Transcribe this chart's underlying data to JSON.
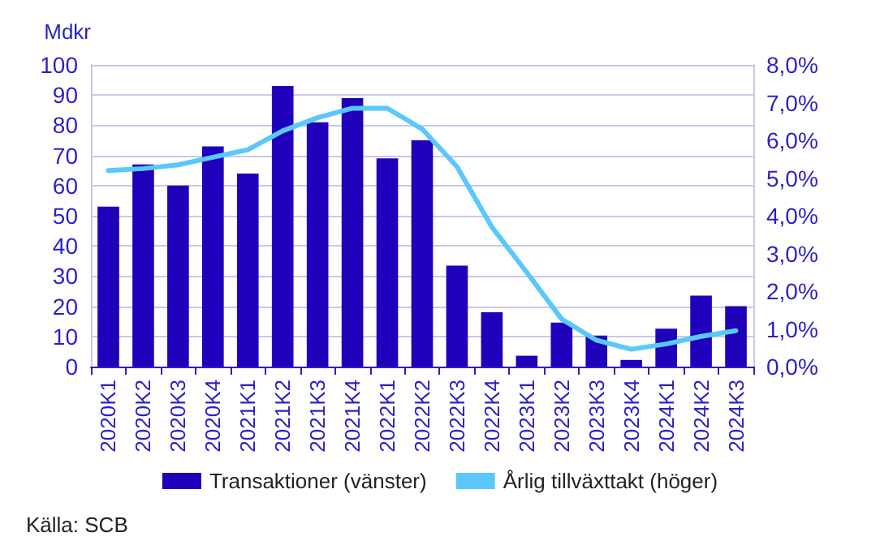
{
  "chart_data": {
    "type": "bar",
    "ylabel": "Mdkr",
    "categories": [
      "2020K1",
      "2020K2",
      "2020K3",
      "2020K4",
      "2021K1",
      "2021K2",
      "2021K3",
      "2021K4",
      "2022K1",
      "2022K2",
      "2022K3",
      "2022K4",
      "2023K1",
      "2023K2",
      "2023K3",
      "2023K4",
      "2024K1",
      "2024K2",
      "2024K3"
    ],
    "series": [
      {
        "name": "Transaktioner (vänster)",
        "color": "#1f00bb",
        "values": [
          53,
          67,
          60,
          73,
          64,
          93,
          81,
          89,
          69,
          75,
          33.5,
          18,
          3.6,
          14.6,
          10.3,
          2.2,
          12.6,
          23.5,
          20
        ]
      },
      {
        "name": "Årlig tillväxttakt (höger)",
        "type": "line",
        "axis": "y2",
        "color": "#5ac8fa",
        "values": [
          5.2,
          5.25,
          5.35,
          5.55,
          5.75,
          6.25,
          6.6,
          6.85,
          6.85,
          6.3,
          5.3,
          3.7,
          2.5,
          1.26,
          0.7,
          0.46,
          0.6,
          0.8,
          0.95
        ]
      }
    ],
    "ylim": [
      0,
      100
    ],
    "yticks": [
      0,
      10,
      20,
      30,
      40,
      50,
      60,
      70,
      80,
      90,
      100
    ],
    "y2lim": [
      0,
      8
    ],
    "y2ticks": [
      {
        "value": 0,
        "label": "0,0%"
      },
      {
        "value": 1,
        "label": "1,0%"
      },
      {
        "value": 2,
        "label": "2,0%"
      },
      {
        "value": 3,
        "label": "3,0%"
      },
      {
        "value": 4,
        "label": "4,0%"
      },
      {
        "value": 5,
        "label": "5,0%"
      },
      {
        "value": 6,
        "label": "6,0%"
      },
      {
        "value": 7,
        "label": "7,0%"
      },
      {
        "value": 8,
        "label": "8,0%"
      }
    ],
    "grid": "y",
    "legend": "bottom",
    "marker": "none",
    "line_style": "solid",
    "annotations": [
      "Källa: SCB"
    ]
  }
}
